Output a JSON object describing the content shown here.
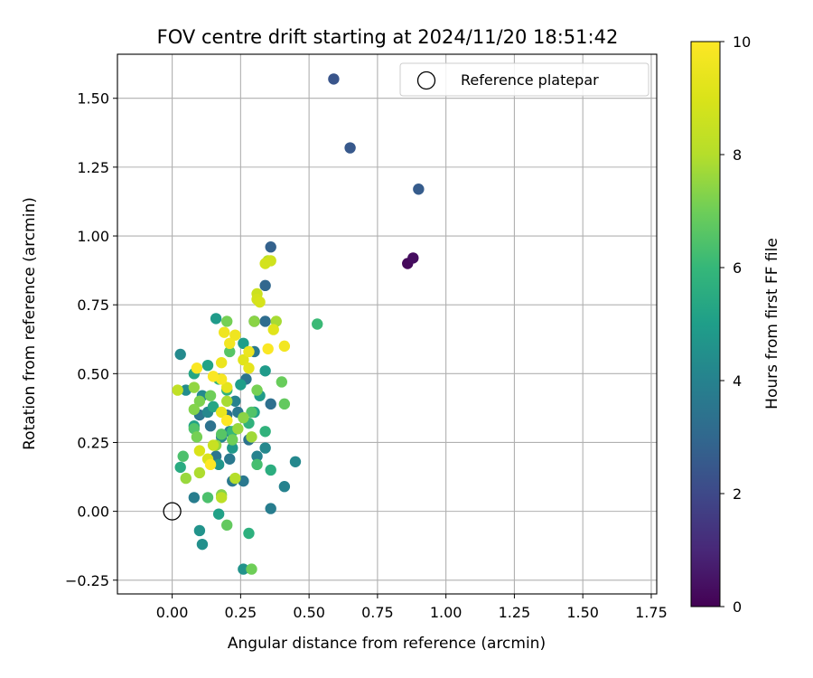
{
  "chart_data": {
    "type": "scatter",
    "title": "FOV centre drift starting at 2024/11/20 18:51:42",
    "xlabel": "Angular distance from reference (arcmin)",
    "ylabel": "Rotation from reference (arcmin)",
    "xlim": [
      -0.2,
      1.77
    ],
    "ylim": [
      -0.3,
      1.66
    ],
    "xticks": [
      0.0,
      0.25,
      0.5,
      0.75,
      1.0,
      1.25,
      1.5,
      1.75
    ],
    "xtick_labels": [
      "0.00",
      "0.25",
      "0.50",
      "0.75",
      "1.00",
      "1.25",
      "1.50",
      "1.75"
    ],
    "yticks": [
      -0.25,
      0.0,
      0.25,
      0.5,
      0.75,
      1.0,
      1.25,
      1.5
    ],
    "ytick_labels": [
      "−0.25",
      "0.00",
      "0.25",
      "0.50",
      "0.75",
      "1.00",
      "1.25",
      "1.50"
    ],
    "grid": true,
    "legend": {
      "position": "top-right",
      "entries": [
        "Reference platepar"
      ]
    },
    "reference_point": {
      "x": 0.0,
      "y": 0.0,
      "label": "Reference platepar"
    },
    "colorbar": {
      "label": "Hours from first FF file",
      "colormap": "viridis",
      "range": [
        0,
        10
      ],
      "ticks": [
        0,
        2,
        4,
        6,
        8,
        10
      ],
      "tick_labels": [
        "0",
        "2",
        "4",
        "6",
        "8",
        "10"
      ]
    },
    "series": [
      {
        "points": [
          {
            "x": 0.86,
            "y": 0.9,
            "c": 0.2
          },
          {
            "x": 0.88,
            "y": 0.92,
            "c": 0.3
          },
          {
            "x": 0.59,
            "y": 1.57,
            "c": 2.4
          },
          {
            "x": 0.65,
            "y": 1.32,
            "c": 2.5
          },
          {
            "x": 0.9,
            "y": 1.17,
            "c": 2.6
          },
          {
            "x": 0.36,
            "y": 0.96,
            "c": 2.8
          },
          {
            "x": 0.34,
            "y": 0.82,
            "c": 3.0
          },
          {
            "x": 0.3,
            "y": 0.69,
            "c": 3.0
          },
          {
            "x": 0.34,
            "y": 0.69,
            "c": 3.2
          },
          {
            "x": 0.36,
            "y": 0.39,
            "c": 3.3
          },
          {
            "x": 0.3,
            "y": 0.58,
            "c": 3.6
          },
          {
            "x": 0.27,
            "y": 0.48,
            "c": 3.5
          },
          {
            "x": 0.26,
            "y": 0.11,
            "c": 3.6
          },
          {
            "x": 0.22,
            "y": 0.11,
            "c": 3.6
          },
          {
            "x": 0.28,
            "y": 0.26,
            "c": 3.4
          },
          {
            "x": 0.24,
            "y": 0.36,
            "c": 3.6
          },
          {
            "x": 0.1,
            "y": 0.35,
            "c": 3.5
          },
          {
            "x": 0.14,
            "y": 0.31,
            "c": 3.4
          },
          {
            "x": 0.16,
            "y": 0.2,
            "c": 3.5
          },
          {
            "x": 0.21,
            "y": 0.19,
            "c": 3.6
          },
          {
            "x": 0.2,
            "y": 0.35,
            "c": 3.4
          },
          {
            "x": 0.08,
            "y": 0.05,
            "c": 3.8
          },
          {
            "x": 0.36,
            "y": 0.01,
            "c": 3.8
          },
          {
            "x": 0.41,
            "y": 0.09,
            "c": 4.0
          },
          {
            "x": 0.45,
            "y": 0.18,
            "c": 4.2
          },
          {
            "x": 0.34,
            "y": 0.23,
            "c": 4.2
          },
          {
            "x": 0.31,
            "y": 0.2,
            "c": 4.0
          },
          {
            "x": 0.23,
            "y": 0.4,
            "c": 4.0
          },
          {
            "x": 0.21,
            "y": 0.29,
            "c": 4.1
          },
          {
            "x": 0.18,
            "y": 0.27,
            "c": 4.2
          },
          {
            "x": 0.13,
            "y": 0.36,
            "c": 4.2
          },
          {
            "x": 0.11,
            "y": 0.42,
            "c": 4.3
          },
          {
            "x": 0.03,
            "y": 0.57,
            "c": 4.3
          },
          {
            "x": 0.05,
            "y": 0.44,
            "c": 4.4
          },
          {
            "x": 0.11,
            "y": -0.12,
            "c": 4.5
          },
          {
            "x": 0.1,
            "y": -0.07,
            "c": 4.6
          },
          {
            "x": 0.26,
            "y": -0.21,
            "c": 4.6
          },
          {
            "x": 0.17,
            "y": 0.17,
            "c": 4.7
          },
          {
            "x": 0.22,
            "y": 0.23,
            "c": 4.8
          },
          {
            "x": 0.16,
            "y": 0.7,
            "c": 4.9
          },
          {
            "x": 0.34,
            "y": 0.51,
            "c": 4.9
          },
          {
            "x": 0.32,
            "y": 0.42,
            "c": 4.9
          },
          {
            "x": 0.25,
            "y": 0.46,
            "c": 5.0
          },
          {
            "x": 0.26,
            "y": 0.61,
            "c": 5.0
          },
          {
            "x": 0.3,
            "y": 0.36,
            "c": 5.1
          },
          {
            "x": 0.17,
            "y": -0.01,
            "c": 5.1
          },
          {
            "x": 0.13,
            "y": 0.53,
            "c": 5.2
          },
          {
            "x": 0.08,
            "y": 0.31,
            "c": 5.2
          },
          {
            "x": 0.08,
            "y": 0.5,
            "c": 5.3
          },
          {
            "x": 0.15,
            "y": 0.38,
            "c": 5.3
          },
          {
            "x": 0.03,
            "y": 0.16,
            "c": 5.5
          },
          {
            "x": 0.36,
            "y": 0.15,
            "c": 5.6
          },
          {
            "x": 0.28,
            "y": -0.08,
            "c": 5.7
          },
          {
            "x": 0.34,
            "y": 0.29,
            "c": 5.8
          },
          {
            "x": 0.28,
            "y": 0.32,
            "c": 5.8
          },
          {
            "x": 0.2,
            "y": 0.44,
            "c": 5.8
          },
          {
            "x": 0.17,
            "y": 0.48,
            "c": 5.9
          },
          {
            "x": 0.22,
            "y": 0.29,
            "c": 6.0
          },
          {
            "x": 0.53,
            "y": 0.68,
            "c": 6.1
          },
          {
            "x": 0.31,
            "y": 0.17,
            "c": 6.3
          },
          {
            "x": 0.13,
            "y": 0.05,
            "c": 6.4
          },
          {
            "x": 0.04,
            "y": 0.2,
            "c": 6.4
          },
          {
            "x": 0.08,
            "y": 0.3,
            "c": 6.5
          },
          {
            "x": 0.21,
            "y": 0.58,
            "c": 6.6
          },
          {
            "x": 0.29,
            "y": 0.36,
            "c": 6.5
          },
          {
            "x": 0.18,
            "y": 0.28,
            "c": 6.6
          },
          {
            "x": 0.2,
            "y": -0.05,
            "c": 6.8
          },
          {
            "x": 0.41,
            "y": 0.39,
            "c": 6.8
          },
          {
            "x": 0.4,
            "y": 0.47,
            "c": 6.9
          },
          {
            "x": 0.29,
            "y": -0.21,
            "c": 7.0
          },
          {
            "x": 0.22,
            "y": 0.26,
            "c": 7.0
          },
          {
            "x": 0.09,
            "y": 0.27,
            "c": 7.1
          },
          {
            "x": 0.14,
            "y": 0.42,
            "c": 7.0
          },
          {
            "x": 0.31,
            "y": 0.44,
            "c": 7.1
          },
          {
            "x": 0.2,
            "y": 0.69,
            "c": 7.1
          },
          {
            "x": 0.1,
            "y": 0.4,
            "c": 7.2
          },
          {
            "x": 0.08,
            "y": 0.37,
            "c": 7.3
          },
          {
            "x": 0.18,
            "y": 0.06,
            "c": 7.3
          },
          {
            "x": 0.3,
            "y": 0.69,
            "c": 7.4
          },
          {
            "x": 0.26,
            "y": 0.34,
            "c": 7.4
          },
          {
            "x": 0.16,
            "y": 0.24,
            "c": 7.5
          },
          {
            "x": 0.08,
            "y": 0.45,
            "c": 7.5
          },
          {
            "x": 0.24,
            "y": 0.3,
            "c": 7.6
          },
          {
            "x": 0.05,
            "y": 0.12,
            "c": 7.6
          },
          {
            "x": 0.29,
            "y": 0.27,
            "c": 7.7
          },
          {
            "x": 0.38,
            "y": 0.69,
            "c": 7.8
          },
          {
            "x": 0.2,
            "y": 0.4,
            "c": 7.8
          },
          {
            "x": 0.1,
            "y": 0.14,
            "c": 7.9
          },
          {
            "x": 0.23,
            "y": 0.12,
            "c": 8.0
          },
          {
            "x": 0.35,
            "y": 0.91,
            "c": 8.1
          },
          {
            "x": 0.18,
            "y": 0.05,
            "c": 8.2
          },
          {
            "x": 0.02,
            "y": 0.44,
            "c": 8.3
          },
          {
            "x": 0.15,
            "y": 0.24,
            "c": 8.5
          },
          {
            "x": 0.31,
            "y": 0.79,
            "c": 8.6
          },
          {
            "x": 0.36,
            "y": 0.91,
            "c": 8.7
          },
          {
            "x": 0.34,
            "y": 0.9,
            "c": 8.8
          },
          {
            "x": 0.31,
            "y": 0.77,
            "c": 8.8
          },
          {
            "x": 0.32,
            "y": 0.76,
            "c": 8.9
          },
          {
            "x": 0.1,
            "y": 0.22,
            "c": 9.0
          },
          {
            "x": 0.13,
            "y": 0.19,
            "c": 9.0
          },
          {
            "x": 0.2,
            "y": 0.33,
            "c": 9.1
          },
          {
            "x": 0.26,
            "y": 0.55,
            "c": 9.2
          },
          {
            "x": 0.28,
            "y": 0.52,
            "c": 9.3
          },
          {
            "x": 0.37,
            "y": 0.66,
            "c": 9.2
          },
          {
            "x": 0.2,
            "y": 0.45,
            "c": 9.3
          },
          {
            "x": 0.18,
            "y": 0.36,
            "c": 9.4
          },
          {
            "x": 0.18,
            "y": 0.54,
            "c": 9.5
          },
          {
            "x": 0.28,
            "y": 0.58,
            "c": 9.5
          },
          {
            "x": 0.19,
            "y": 0.65,
            "c": 9.6
          },
          {
            "x": 0.23,
            "y": 0.64,
            "c": 9.6
          },
          {
            "x": 0.21,
            "y": 0.61,
            "c": 9.7
          },
          {
            "x": 0.41,
            "y": 0.6,
            "c": 9.7
          },
          {
            "x": 0.18,
            "y": 0.48,
            "c": 9.8
          },
          {
            "x": 0.09,
            "y": 0.52,
            "c": 9.9
          },
          {
            "x": 0.15,
            "y": 0.49,
            "c": 9.9
          },
          {
            "x": 0.35,
            "y": 0.59,
            "c": 9.9
          },
          {
            "x": 0.14,
            "y": 0.17,
            "c": 10.0
          },
          {
            "x": 0.2,
            "y": 0.33,
            "c": 10.0
          }
        ]
      }
    ]
  }
}
